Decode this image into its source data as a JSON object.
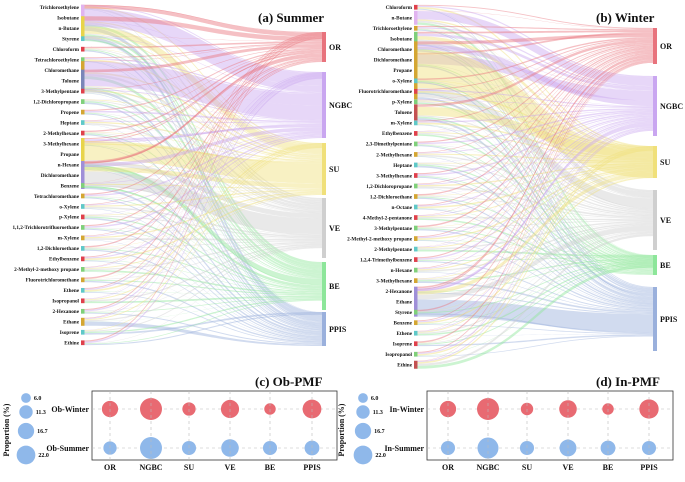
{
  "panels": {
    "a": {
      "title": "(a) Summer",
      "sources": [
        "Trichloroethylene",
        "Isobutane",
        "n-Butane",
        "Styrene",
        "Chloroform",
        "Tetrachloroethylene",
        "Chloromethane",
        "Toluene",
        "3-Methylpentane",
        "1,2-Dichloropropane",
        "Propene",
        "Heptane",
        "2-Methylhexane",
        "3-Methylhexane",
        "Propane",
        "n-Hexane",
        "Dichloromethane",
        "Benzene",
        "Tetrachloromethane",
        "o-Xylene",
        "p-Xylene",
        "1,1,2-Trichlorotrifluoroethane",
        "m-Xylene",
        "1,2-Dichloroethane",
        "Ethylbenzene",
        "2-Methyl-2-methoxy propane",
        "Fluorotrichloromethane",
        "Ethene",
        "Isopropanol",
        "2-Hexanone",
        "Ethane",
        "Isoprene",
        "Ethine"
      ],
      "targets": [
        "OR",
        "NGBC",
        "SU",
        "VE",
        "BE",
        "PPIS"
      ]
    },
    "b": {
      "title": "(b) Winter",
      "sources": [
        "Chloroform",
        "n-Butane",
        "Trichloroethylene",
        "Isobutane",
        "Chloromethane",
        "Dichloromethane",
        "Propane",
        "o-Xylene",
        "Fluorotrichloromethane",
        "p-Xylene",
        "Toluene",
        "m-Xylene",
        "Ethylbenzene",
        "2,3-Dimethylpentane",
        "2-Methylhexane",
        "Heptane",
        "3-Methylhexane",
        "1,2-Dichloropropane",
        "1,2-Dichloroethane",
        "n-Octane",
        "4-Methyl-2-pentanone",
        "3-Methylpentane",
        "2-Methyl-2-methoxy propane",
        "2-Methylpentane",
        "1,2,4-Trimethylbenzene",
        "n-Hexane",
        "3-Methylhexane",
        "2-Hexanone",
        "Ethane",
        "Styrene",
        "Benzene",
        "Ethene",
        "Isoprene",
        "Isopropanol",
        "Ethine"
      ],
      "targets": [
        "OR",
        "NGBC",
        "SU",
        "VE",
        "BE",
        "PPIS"
      ]
    },
    "c": {
      "title": "(c) Ob-PMF",
      "rows": [
        "Ob-Winter",
        "Ob-Summer"
      ],
      "columns": [
        "OR",
        "NGBC",
        "SU",
        "VE",
        "BE",
        "PPIS"
      ],
      "values": [
        [
          12,
          22,
          8,
          15,
          6,
          16
        ],
        [
          8,
          22,
          9,
          14,
          9,
          10
        ]
      ]
    },
    "d": {
      "title": "(d) In-PMF",
      "rows": [
        "In-Winter",
        "In-Summer"
      ],
      "columns": [
        "OR",
        "NGBC",
        "SU",
        "VE",
        "BE",
        "PPIS"
      ],
      "values": [
        [
          12,
          22,
          7,
          14,
          6,
          17
        ],
        [
          9,
          20,
          9,
          13,
          10,
          9
        ]
      ]
    }
  },
  "legend": {
    "title": "Proportion (%)",
    "sizes": [
      "6.0",
      "11.3",
      "16.7",
      "22.0"
    ],
    "size_values": [
      6.0,
      11.3,
      16.7,
      22.0
    ]
  },
  "colors": {
    "OR": "#e8737d",
    "NGBC": "#c9a6f0",
    "SU": "#f0e07a",
    "VE": "#cfcfcf",
    "BE": "#8de69a",
    "PPIS": "#9ab0dc",
    "winter_bubble": "#e86a72",
    "summer_bubble": "#8fb8ea"
  }
}
